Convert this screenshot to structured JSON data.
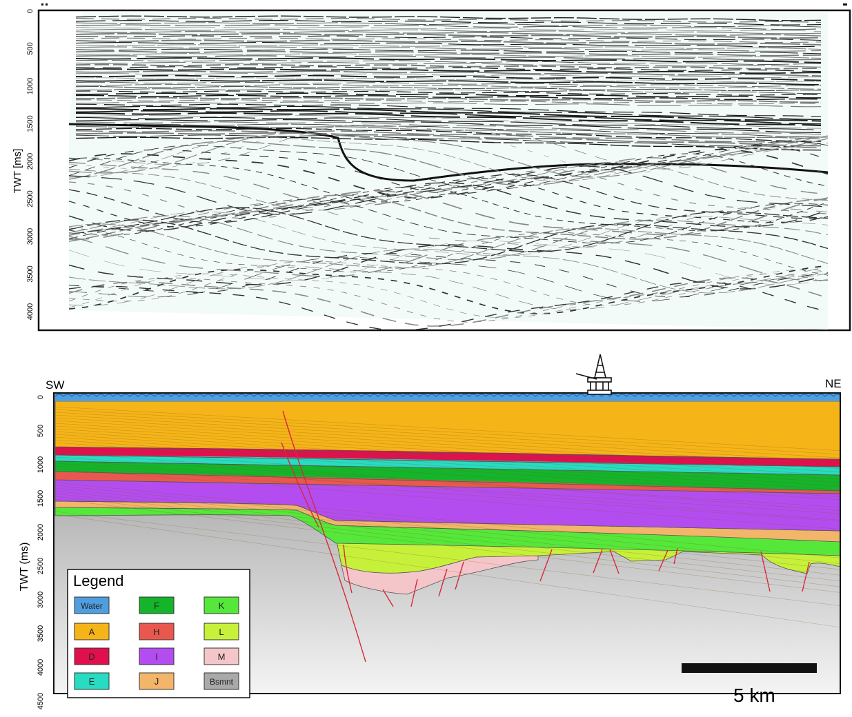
{
  "seismic": {
    "ylabel": "TWT [ms]",
    "ticks": [
      "0",
      "500",
      "1000",
      "1500",
      "2000",
      "2500",
      "3000",
      "3500",
      "4000"
    ]
  },
  "section": {
    "ylabel": "TWT (ms)",
    "ticks": [
      "0",
      "500",
      "1000",
      "1500",
      "2000",
      "2500",
      "3000",
      "3500",
      "4000",
      "4500"
    ],
    "left_label": "SW",
    "right_label": "NE",
    "scale_label": "5 km"
  },
  "legend": {
    "title": "Legend",
    "items": [
      {
        "label": "Water",
        "color": "#4f9fe0"
      },
      {
        "label": "A",
        "color": "#f5b418"
      },
      {
        "label": "D",
        "color": "#e0104f"
      },
      {
        "label": "E",
        "color": "#27dcc2"
      },
      {
        "label": "F",
        "color": "#14b52a"
      },
      {
        "label": "H",
        "color": "#e8584f"
      },
      {
        "label": "I",
        "color": "#b44df0"
      },
      {
        "label": "J",
        "color": "#f2b56a"
      },
      {
        "label": "K",
        "color": "#55e83a"
      },
      {
        "label": "L",
        "color": "#c7f03a"
      },
      {
        "label": "M",
        "color": "#f4c6c9"
      },
      {
        "label": "Bsmnt",
        "color": "#a9a9a9"
      }
    ]
  },
  "colors": {
    "fault": "#d8283a",
    "frame": "#111111",
    "seismic_bg": "#f2fbf8"
  }
}
